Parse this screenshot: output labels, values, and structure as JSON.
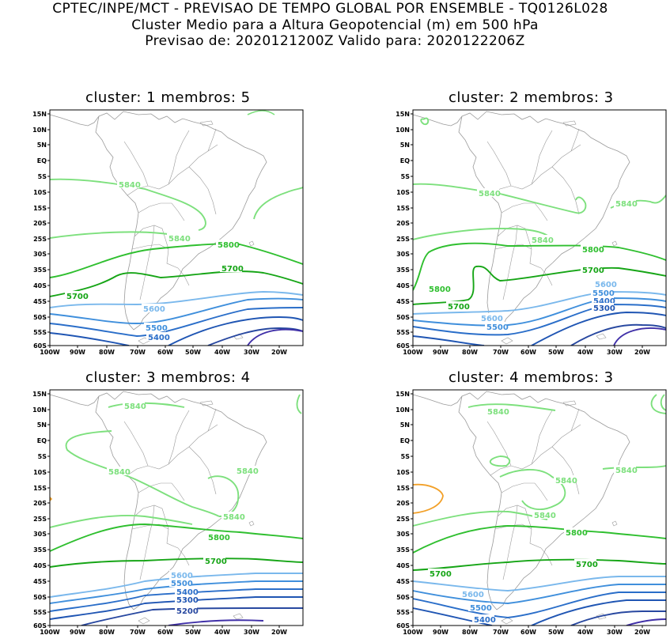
{
  "header": {
    "line1": "CPTEC/INPE/MCT - PREVISAO DE TEMPO GLOBAL POR ENSEMBLE - TQ0126L028",
    "line2": "Cluster Medio para a Altura Geopotencial (m) em 500 hPa",
    "line3": "Previsao de: 2020121200Z    Valido para: 2020122206Z"
  },
  "axes": {
    "lat_labels": [
      "15N",
      "10N",
      "5N",
      "EQ",
      "5S",
      "10S",
      "15S",
      "20S",
      "25S",
      "30S",
      "35S",
      "40S",
      "45S",
      "50S",
      "55S",
      "60S"
    ],
    "lon_labels": [
      "100W",
      "90W",
      "80W",
      "70W",
      "60W",
      "50W",
      "40W",
      "30W",
      "20W"
    ]
  },
  "colors": {
    "5840": "#7de07d",
    "5800": "#2fbf2f",
    "5700": "#16a516",
    "5600": "#7ab8ec",
    "5500": "#3f8fdc",
    "5400": "#2a6ec9",
    "5300": "#1f55b3",
    "5200": "#2848a0",
    "low": "#4030a8",
    "high": "#f2a028",
    "coast": "#9a9a9a"
  },
  "panels": [
    {
      "title": "cluster: 1   membros: 5",
      "labels": [
        {
          "text": "5840",
          "level": "5840"
        },
        {
          "text": "5840",
          "level": "5840"
        },
        {
          "text": "5800",
          "level": "5800"
        },
        {
          "text": "5700",
          "level": "5700"
        },
        {
          "text": "5700",
          "level": "5700"
        },
        {
          "text": "5600",
          "level": "5600"
        },
        {
          "text": "5500",
          "level": "5500"
        },
        {
          "text": "5400",
          "level": "5400"
        }
      ]
    },
    {
      "title": "cluster: 2   membros: 3",
      "labels": [
        {
          "text": "5840",
          "level": "5840"
        },
        {
          "text": "5840",
          "level": "5840"
        },
        {
          "text": "5840",
          "level": "5840"
        },
        {
          "text": "5800",
          "level": "5800"
        },
        {
          "text": "5800",
          "level": "5800"
        },
        {
          "text": "5700",
          "level": "5700"
        },
        {
          "text": "5700",
          "level": "5700"
        },
        {
          "text": "5600",
          "level": "5600"
        },
        {
          "text": "5600",
          "level": "5600"
        },
        {
          "text": "5500",
          "level": "5500"
        },
        {
          "text": "5500",
          "level": "5500"
        },
        {
          "text": "5400",
          "level": "5400"
        },
        {
          "text": "5300",
          "level": "5300"
        }
      ]
    },
    {
      "title": "cluster: 3   membros: 4",
      "labels": [
        {
          "text": "5840",
          "level": "5840"
        },
        {
          "text": "5840",
          "level": "5840"
        },
        {
          "text": "5840",
          "level": "5840"
        },
        {
          "text": "5840",
          "level": "5840"
        },
        {
          "text": "5800",
          "level": "5800"
        },
        {
          "text": "5700",
          "level": "5700"
        },
        {
          "text": "5600",
          "level": "5600"
        },
        {
          "text": "5500",
          "level": "5500"
        },
        {
          "text": "5400",
          "level": "5400"
        },
        {
          "text": "5300",
          "level": "5300"
        },
        {
          "text": "5200",
          "level": "5200"
        }
      ]
    },
    {
      "title": "cluster: 4   membros: 3",
      "labels": [
        {
          "text": "5840",
          "level": "5840"
        },
        {
          "text": "5840",
          "level": "5840"
        },
        {
          "text": "5840",
          "level": "5840"
        },
        {
          "text": "5840",
          "level": "5840"
        },
        {
          "text": "5800",
          "level": "5800"
        },
        {
          "text": "5700",
          "level": "5700"
        },
        {
          "text": "5700",
          "level": "5700"
        },
        {
          "text": "5600",
          "level": "5600"
        },
        {
          "text": "5500",
          "level": "5500"
        },
        {
          "text": "5400",
          "level": "5400"
        }
      ]
    }
  ]
}
